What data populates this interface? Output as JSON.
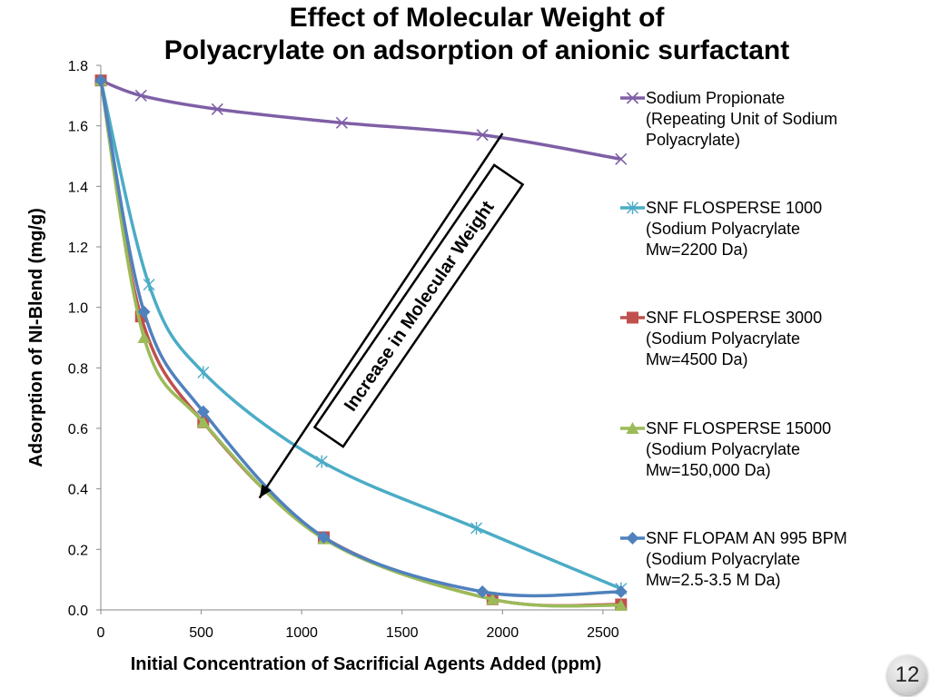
{
  "chart_data": {
    "type": "line",
    "title_lines": [
      "Effect of Molecular Weight of",
      "Polyacrylate on adsorption of anionic surfactant"
    ],
    "xlabel": "Initial Concentration of Sacrificial Agents Added (ppm)",
    "ylabel": "Adsorption of NI-Blend (mg/g)",
    "xlim": [
      0,
      2600
    ],
    "ylim": [
      0,
      1.8
    ],
    "x_ticks": [
      0,
      500,
      1000,
      1500,
      2000,
      2500
    ],
    "y_ticks": [
      0.0,
      0.2,
      0.4,
      0.6,
      0.8,
      1.0,
      1.2,
      1.4,
      1.6,
      1.8
    ],
    "y_tick_labels": [
      "0.0",
      "0.2",
      "0.4",
      "0.6",
      "0.8",
      "1.0",
      "1.2",
      "1.4",
      "1.6",
      "1.8"
    ],
    "x_tick_labels": [
      "0",
      "500",
      "1000",
      "1500",
      "2000",
      "2500"
    ],
    "grid": false,
    "legend_position": "right",
    "series": [
      {
        "name": "Sodium Propionate",
        "legend_lines": [
          "Sodium Propionate",
          "(Repeating Unit of Sodium",
          "Polyacrylate)"
        ],
        "color": "#7F5FA6",
        "marker": "x",
        "x": [
          0,
          200,
          580,
          1200,
          1900,
          2590
        ],
        "y": [
          1.75,
          1.7,
          1.655,
          1.61,
          1.57,
          1.49
        ]
      },
      {
        "name": "SNF FLOSPERSE 1000",
        "legend_lines": [
          "SNF FLOSPERSE 1000",
          "(Sodium Polyacrylate",
          "Mw=2200 Da)"
        ],
        "color": "#4BACC6",
        "marker": "asterisk",
        "x": [
          0,
          240,
          510,
          1100,
          1870,
          2590
        ],
        "y": [
          1.75,
          1.075,
          0.785,
          0.49,
          0.27,
          0.07
        ]
      },
      {
        "name": "SNF FLOSPERSE 3000",
        "legend_lines": [
          "SNF FLOSPERSE 3000",
          "(Sodium Polyacrylate",
          "Mw=4500 Da)"
        ],
        "color": "#C0504D",
        "marker": "square",
        "x": [
          0,
          200,
          510,
          1110,
          1950,
          2590
        ],
        "y": [
          1.75,
          0.97,
          0.62,
          0.24,
          0.035,
          0.018
        ]
      },
      {
        "name": "SNF FLOSPERSE 15000",
        "legend_lines": [
          "SNF FLOSPERSE 15000",
          "(Sodium Polyacrylate",
          "Mw=150,000 Da)"
        ],
        "color": "#9BBB59",
        "marker": "triangle",
        "x": [
          0,
          215,
          510,
          1110,
          1950,
          2590
        ],
        "y": [
          1.75,
          0.9,
          0.62,
          0.235,
          0.035,
          0.015
        ]
      },
      {
        "name": "SNF FLOPAM AN 995 BPM",
        "legend_lines": [
          "SNF FLOPAM AN 995 BPM",
          "(Sodium Polyacrylate",
          "Mw=2.5-3.5 M Da)"
        ],
        "color": "#4F81BD",
        "marker": "diamond",
        "x": [
          0,
          215,
          510,
          1110,
          1900,
          2590
        ],
        "y": [
          1.75,
          0.985,
          0.655,
          0.24,
          0.06,
          0.06
        ]
      }
    ],
    "annotation": {
      "text": "Increase in Molecular Weight",
      "arrow_from": [
        2000,
        1.575
      ],
      "arrow_to": [
        790,
        0.37
      ]
    }
  },
  "page_number": "12"
}
